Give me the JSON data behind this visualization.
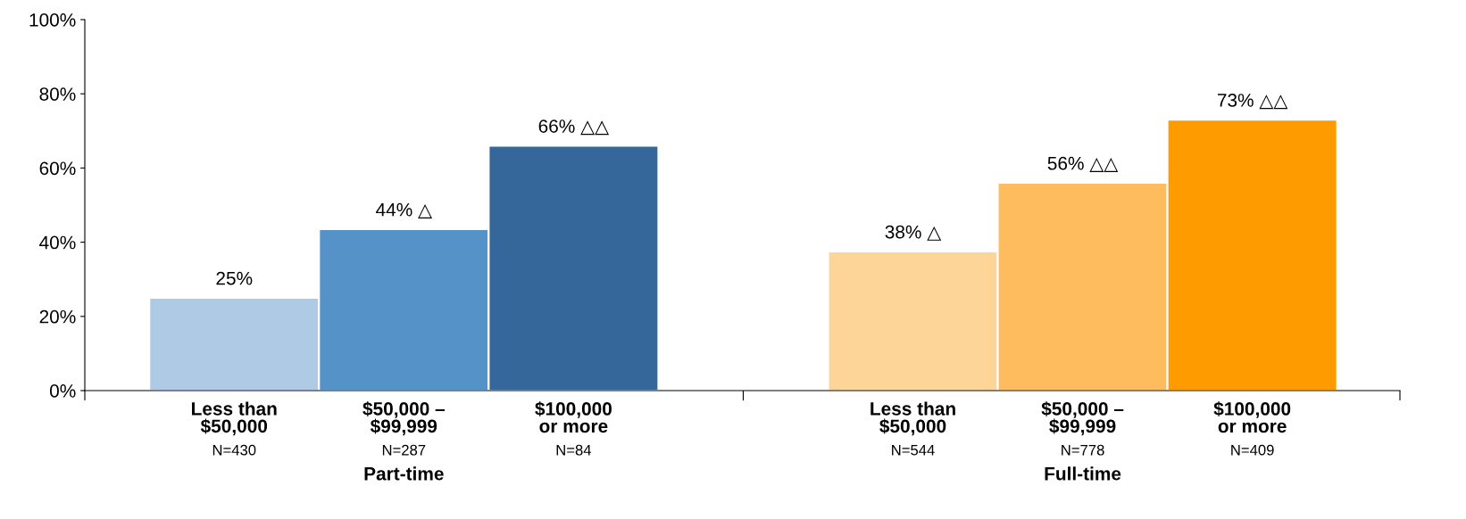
{
  "chart_data": {
    "type": "bar",
    "categories": [
      "Less than\n$50,000\nN=430",
      "$50,000 –\n$99,999\nN=287",
      "$100,000\nor more\nN=84",
      null,
      "Less than\n$50,000\nN=544",
      "$50,000 –\n$99,999\nN=778",
      "$100,000\nor more\nN=409"
    ],
    "values": [
      25,
      43.5,
      66,
      null,
      37.5,
      56,
      73
    ],
    "colors": [
      "#aecae5",
      "#5592c8",
      "#35679a",
      "#ffffff",
      "#fed598",
      "#febc5e",
      "#fe9b00"
    ],
    "value_labels": [
      "25%",
      "44% △",
      "66% △△",
      null,
      "38% △",
      "56% △△",
      "73% △△"
    ],
    "annotations": [
      "Part-time",
      "Full-time"
    ],
    "ylim": [
      0,
      100
    ],
    "yticks": [
      {
        "value": 0,
        "label": "0%"
      },
      {
        "value": 20,
        "label": "20%"
      },
      {
        "value": 40,
        "label": "40%"
      },
      {
        "value": 60,
        "label": "60%"
      },
      {
        "value": 80,
        "label": "80%"
      },
      {
        "value": 100,
        "label": "100%"
      }
    ],
    "grid": false,
    "legend": false
  }
}
